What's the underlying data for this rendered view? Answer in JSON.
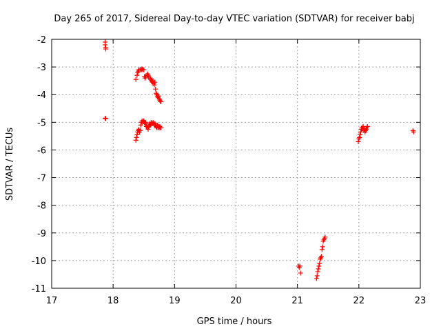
{
  "chart_data": {
    "type": "scatter",
    "title": "Day 265 of 2017, Sidereal Day-to-day VTEC variation (SDTVAR) for receiver babj",
    "xlabel": "GPS time / hours",
    "ylabel": "SDTVAR / TECUs",
    "xlim": [
      17,
      23
    ],
    "ylim": [
      -11,
      -2
    ],
    "xticks": [
      17,
      18,
      19,
      20,
      21,
      22,
      23
    ],
    "yticks": [
      -2,
      -3,
      -4,
      -5,
      -6,
      -7,
      -8,
      -9,
      -10,
      -11
    ],
    "grid": true,
    "marker": "+",
    "color": "#ff0000",
    "series": [
      {
        "name": "SDTVAR",
        "points": [
          [
            17.87,
            -2.1
          ],
          [
            17.87,
            -2.2
          ],
          [
            17.88,
            -2.3
          ],
          [
            17.88,
            -2.35
          ],
          [
            17.87,
            -4.85
          ],
          [
            17.88,
            -4.87
          ],
          [
            18.37,
            -3.45
          ],
          [
            18.39,
            -3.3
          ],
          [
            18.4,
            -3.2
          ],
          [
            18.41,
            -3.15
          ],
          [
            18.42,
            -3.1
          ],
          [
            18.44,
            -3.08
          ],
          [
            18.46,
            -3.1
          ],
          [
            18.47,
            -3.07
          ],
          [
            18.48,
            -3.1
          ],
          [
            18.5,
            -3.1
          ],
          [
            18.51,
            -3.35
          ],
          [
            18.52,
            -3.4
          ],
          [
            18.53,
            -3.35
          ],
          [
            18.55,
            -3.3
          ],
          [
            18.56,
            -3.25
          ],
          [
            18.57,
            -3.3
          ],
          [
            18.58,
            -3.35
          ],
          [
            18.6,
            -3.4
          ],
          [
            18.61,
            -3.45
          ],
          [
            18.62,
            -3.5
          ],
          [
            18.63,
            -3.5
          ],
          [
            18.64,
            -3.55
          ],
          [
            18.65,
            -3.5
          ],
          [
            18.66,
            -3.6
          ],
          [
            18.67,
            -3.65
          ],
          [
            18.68,
            -3.55
          ],
          [
            18.69,
            -3.8
          ],
          [
            18.7,
            -3.95
          ],
          [
            18.71,
            -4.0
          ],
          [
            18.72,
            -4.05
          ],
          [
            18.73,
            -4.1
          ],
          [
            18.74,
            -4.05
          ],
          [
            18.75,
            -4.15
          ],
          [
            18.76,
            -4.2
          ],
          [
            18.77,
            -4.25
          ],
          [
            18.78,
            -4.25
          ],
          [
            18.37,
            -5.65
          ],
          [
            18.38,
            -5.55
          ],
          [
            18.39,
            -5.45
          ],
          [
            18.4,
            -5.35
          ],
          [
            18.41,
            -5.3
          ],
          [
            18.42,
            -5.25
          ],
          [
            18.43,
            -5.35
          ],
          [
            18.44,
            -5.3
          ],
          [
            18.45,
            -5.1
          ],
          [
            18.46,
            -5.0
          ],
          [
            18.47,
            -4.95
          ],
          [
            18.48,
            -5.0
          ],
          [
            18.49,
            -4.95
          ],
          [
            18.5,
            -4.95
          ],
          [
            18.51,
            -5.0
          ],
          [
            18.52,
            -5.05
          ],
          [
            18.53,
            -5.0
          ],
          [
            18.54,
            -5.15
          ],
          [
            18.55,
            -5.1
          ],
          [
            18.56,
            -5.2
          ],
          [
            18.57,
            -5.25
          ],
          [
            18.58,
            -5.15
          ],
          [
            18.59,
            -5.1
          ],
          [
            18.6,
            -5.05
          ],
          [
            18.61,
            -5.1
          ],
          [
            18.62,
            -5.0
          ],
          [
            18.63,
            -5.05
          ],
          [
            18.64,
            -5.05
          ],
          [
            18.65,
            -5.0
          ],
          [
            18.66,
            -5.05
          ],
          [
            18.67,
            -5.1
          ],
          [
            18.68,
            -5.05
          ],
          [
            18.69,
            -5.1
          ],
          [
            18.7,
            -5.15
          ],
          [
            18.71,
            -5.2
          ],
          [
            18.72,
            -5.1
          ],
          [
            18.73,
            -5.2
          ],
          [
            18.74,
            -5.15
          ],
          [
            18.75,
            -5.2
          ],
          [
            18.76,
            -5.15
          ],
          [
            18.77,
            -5.2
          ],
          [
            18.78,
            -5.2
          ],
          [
            21.02,
            -10.2
          ],
          [
            21.03,
            -10.25
          ],
          [
            21.04,
            -10.2
          ],
          [
            21.05,
            -10.45
          ],
          [
            21.31,
            -10.65
          ],
          [
            21.32,
            -10.55
          ],
          [
            21.33,
            -10.4
          ],
          [
            21.34,
            -10.3
          ],
          [
            21.35,
            -10.2
          ],
          [
            21.36,
            -10.1
          ],
          [
            21.37,
            -9.95
          ],
          [
            21.38,
            -9.9
          ],
          [
            21.39,
            -9.85
          ],
          [
            21.4,
            -9.6
          ],
          [
            21.41,
            -9.5
          ],
          [
            21.42,
            -9.3
          ],
          [
            21.43,
            -9.25
          ],
          [
            21.44,
            -9.2
          ],
          [
            21.45,
            -9.15
          ],
          [
            21.99,
            -5.7
          ],
          [
            22.0,
            -5.6
          ],
          [
            22.01,
            -5.55
          ],
          [
            22.02,
            -5.45
          ],
          [
            22.03,
            -5.35
          ],
          [
            22.04,
            -5.25
          ],
          [
            22.05,
            -5.2
          ],
          [
            22.06,
            -5.2
          ],
          [
            22.07,
            -5.15
          ],
          [
            22.08,
            -5.3
          ],
          [
            22.09,
            -5.25
          ],
          [
            22.1,
            -5.35
          ],
          [
            22.11,
            -5.3
          ],
          [
            22.12,
            -5.25
          ],
          [
            22.13,
            -5.2
          ],
          [
            22.14,
            -5.15
          ],
          [
            22.88,
            -5.3
          ],
          [
            22.89,
            -5.35
          ]
        ]
      }
    ]
  }
}
